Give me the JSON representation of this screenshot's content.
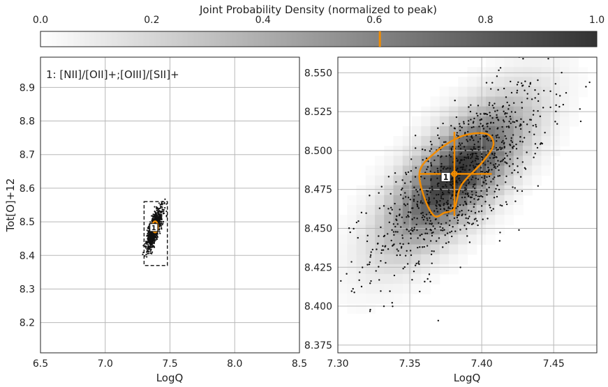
{
  "chart_data": [
    {
      "type": "colorbar",
      "title": "Joint Probability Density (normalized to peak)",
      "ticks": [
        "0.0",
        "0.2",
        "0.4",
        "0.6",
        "0.8",
        "1.0"
      ],
      "range": [
        0,
        1
      ],
      "marker_value": 0.61,
      "colors": {
        "low": "#ffffff",
        "high": "#333333",
        "marker": "#f28c00"
      }
    },
    {
      "type": "scatter",
      "xlabel": "LogQ",
      "ylabel": "Tot[O]+12",
      "annotation": "1: [NII]/[OII]+;[OIII]/[SII]+",
      "xlim": [
        6.5,
        8.5
      ],
      "ylim": [
        8.11,
        8.99
      ],
      "xticks": [
        "6.5",
        "7.0",
        "7.5",
        "8.0",
        "8.5"
      ],
      "yticks": [
        "8.2",
        "8.3",
        "8.4",
        "8.5",
        "8.6",
        "8.7",
        "8.8",
        "8.9"
      ],
      "grid": true,
      "cloud": {
        "center": [
          7.38,
          8.48
        ],
        "sd": [
          0.03,
          0.03
        ]
      },
      "zoom_box": {
        "x": [
          7.3,
          7.48
        ],
        "y": [
          8.37,
          8.56
        ]
      },
      "peak_label": "1",
      "peak": [
        7.375,
        8.483
      ]
    },
    {
      "type": "scatter_heatmap",
      "xlabel": "LogQ",
      "xlim": [
        7.3,
        7.48
      ],
      "ylim": [
        8.37,
        8.56
      ],
      "xticks": [
        "7.30",
        "7.35",
        "7.40",
        "7.45"
      ],
      "yticks": [
        "8.375",
        "8.400",
        "8.425",
        "8.450",
        "8.475",
        "8.500",
        "8.525",
        "8.550"
      ],
      "grid": true,
      "peak_label": "1",
      "peak": [
        7.375,
        8.483
      ],
      "estimate": {
        "x": 7.381,
        "y": 8.485,
        "x_err": [
          7.357,
          7.407
        ],
        "y_err": [
          8.458,
          8.512
        ]
      },
      "contour": [
        [
          7.357,
          8.487
        ],
        [
          7.36,
          8.47
        ],
        [
          7.367,
          8.458
        ],
        [
          7.374,
          8.46
        ],
        [
          7.381,
          8.463
        ],
        [
          7.386,
          8.478
        ],
        [
          7.4,
          8.492
        ],
        [
          7.408,
          8.503
        ],
        [
          7.405,
          8.51
        ],
        [
          7.395,
          8.511
        ],
        [
          7.383,
          8.508
        ],
        [
          7.368,
          8.499
        ],
        [
          7.357,
          8.487
        ]
      ],
      "cloud": {
        "center": [
          7.385,
          8.482
        ],
        "sd": [
          0.03,
          0.03
        ]
      }
    }
  ]
}
